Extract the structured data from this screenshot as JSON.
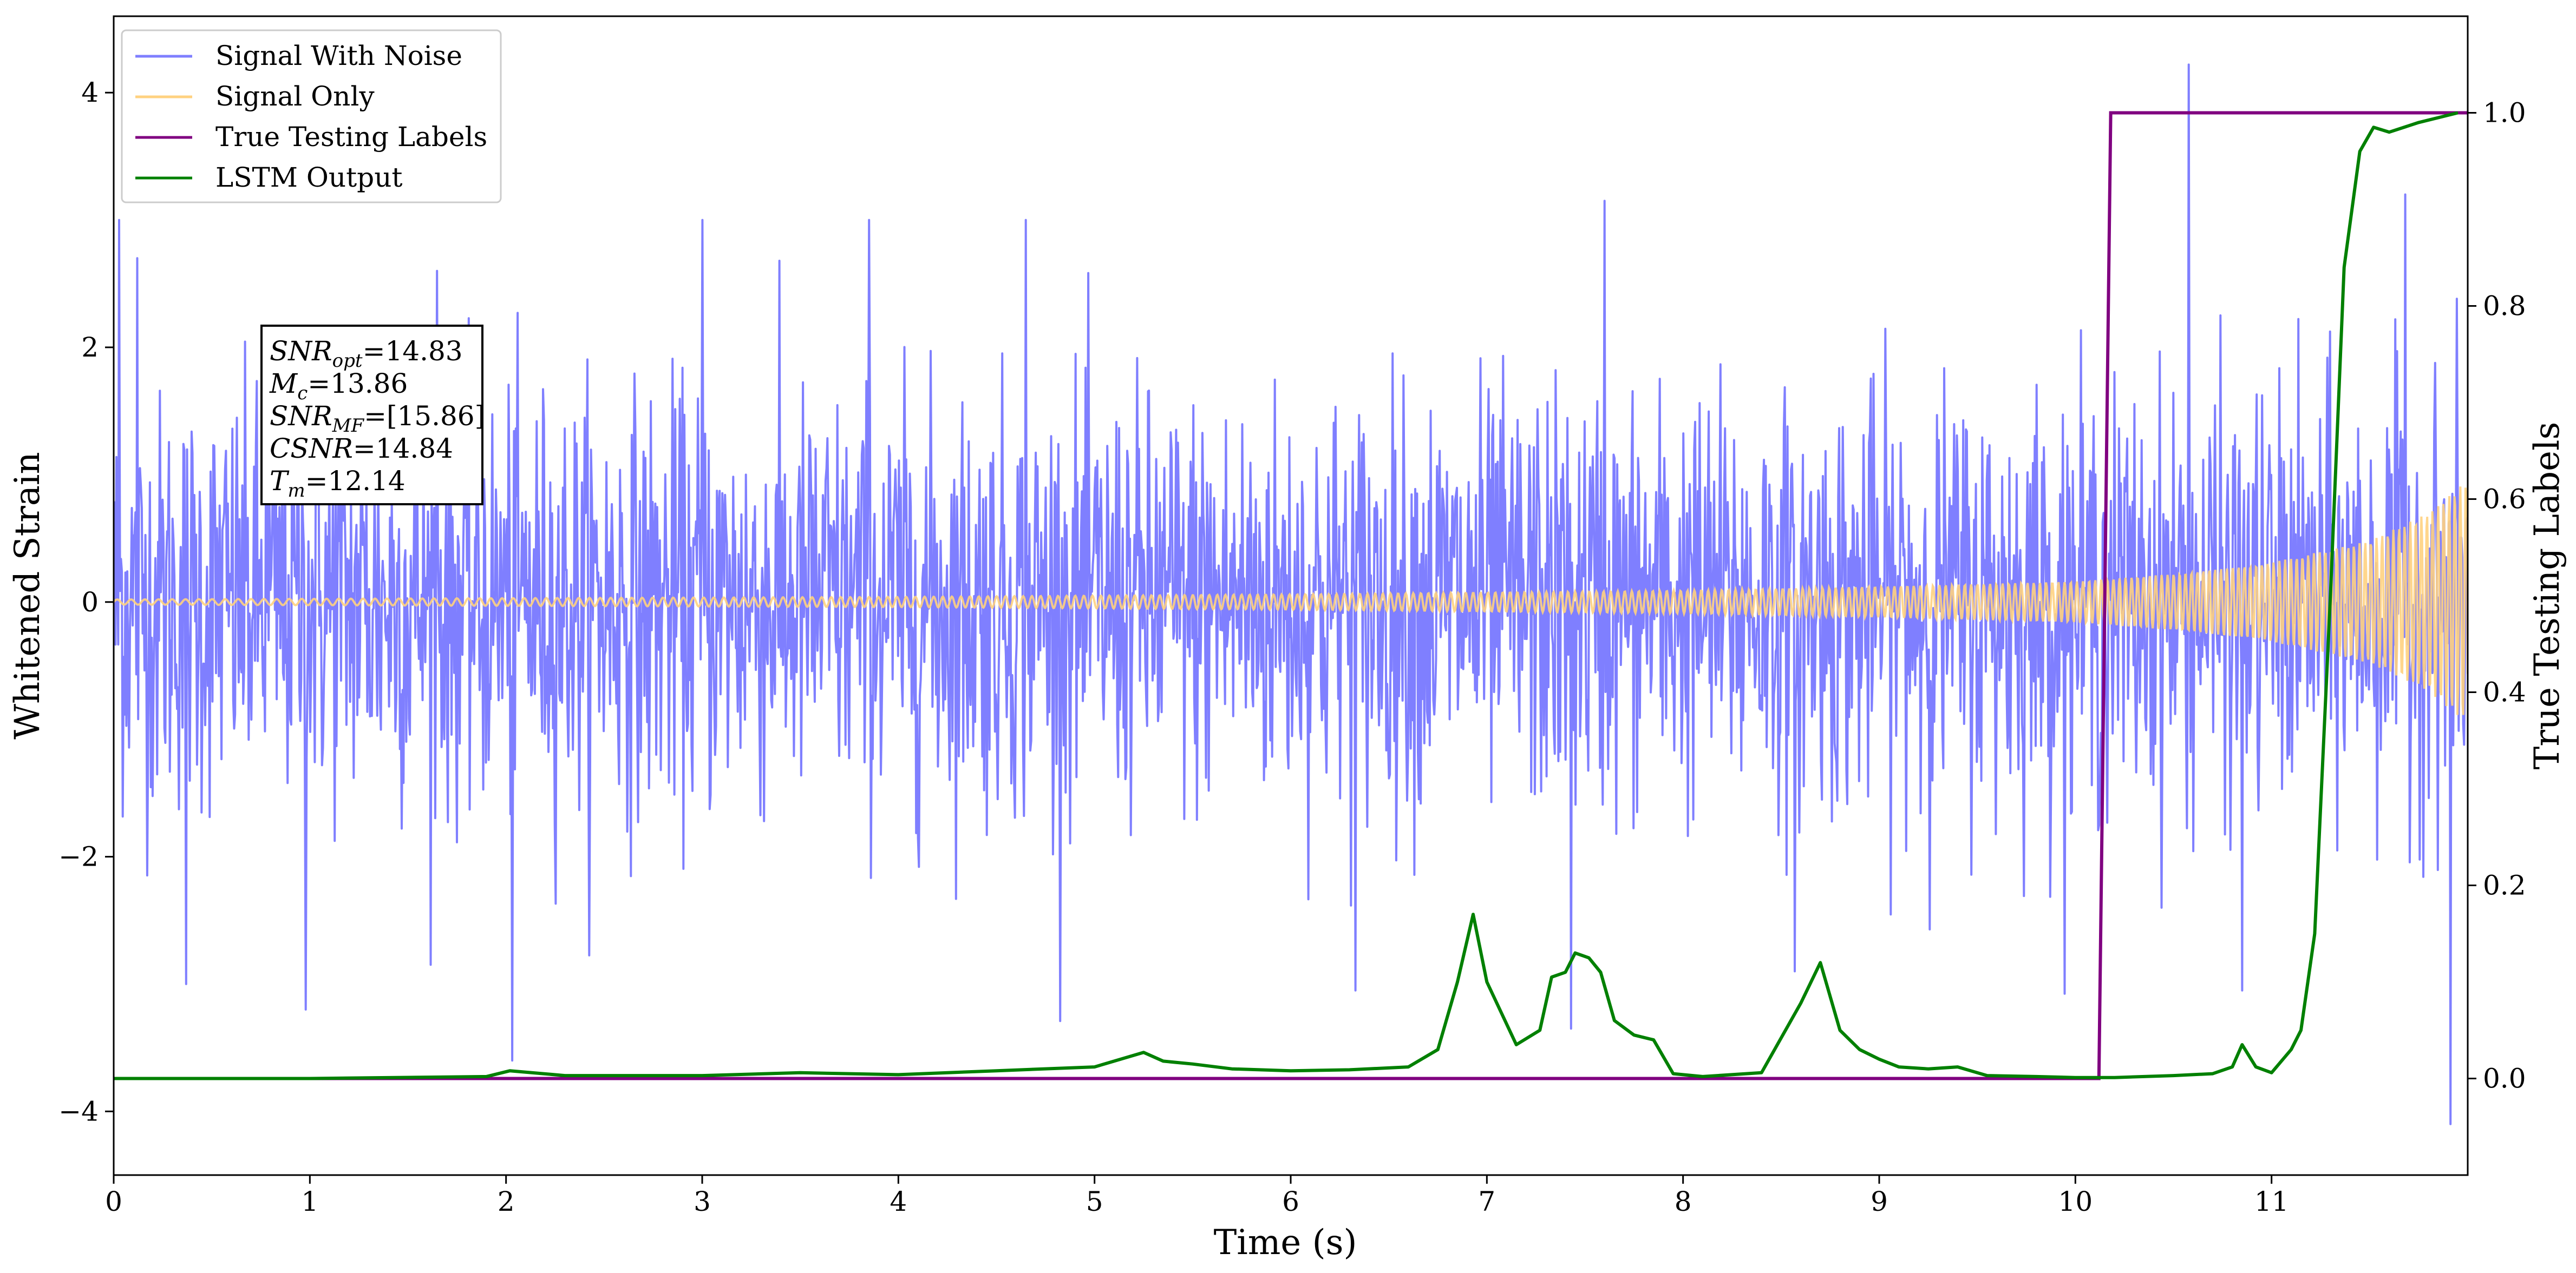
{
  "chart_data": {
    "type": "line",
    "xlabel": "Time (s)",
    "ylabel_left": "Whitened Strain",
    "ylabel_right": "True Testing Labels",
    "xlim": [
      0,
      12.0
    ],
    "ylim_left": [
      -4.5,
      4.6
    ],
    "ylim_right": [
      -0.1,
      1.1
    ],
    "x_ticks": [
      "0",
      "1",
      "2",
      "3",
      "4",
      "5",
      "6",
      "7",
      "8",
      "9",
      "10",
      "11"
    ],
    "y_ticks_left": [
      "−4",
      "−2",
      "0",
      "2",
      "4"
    ],
    "y_ticks_right": [
      "0.0",
      "0.2",
      "0.4",
      "0.6",
      "0.8",
      "1.0"
    ],
    "grid": false,
    "legend_position": "top-left",
    "legend": [
      {
        "label": "Signal With Noise",
        "color": "#7f7fff"
      },
      {
        "label": "Signal Only",
        "color": "#ffd280"
      },
      {
        "label": "True Testing Labels",
        "color": "#800080"
      },
      {
        "label": "LSTM Output",
        "color": "#008000"
      }
    ],
    "annotation": [
      {
        "var": "SNR",
        "sub": "opt",
        "value": "=14.83"
      },
      {
        "var": "M",
        "sub": "c",
        "value": "=13.86"
      },
      {
        "var": "SNR",
        "sub": "MF",
        "value": "=[15.86]"
      },
      {
        "var": "CSNR",
        "sub": "",
        "value": "=14.84"
      },
      {
        "var": "T",
        "sub": "m",
        "value": "=12.14"
      }
    ],
    "series": [
      {
        "name": "Signal With Noise",
        "axis": "left",
        "color": "#7f7fff",
        "envelope_x": [
          0,
          1,
          2,
          3,
          4,
          5,
          6,
          7,
          8,
          9,
          10,
          11,
          12.0
        ],
        "envelope_typical": [
          1.8,
          1.8,
          1.8,
          1.8,
          1.8,
          1.8,
          1.8,
          1.8,
          1.8,
          1.8,
          1.8,
          1.8,
          1.8
        ],
        "spikes": [
          {
            "x": 0.03,
            "y": 3.0
          },
          {
            "x": 0.12,
            "y": 2.7
          },
          {
            "x": 0.37,
            "y": -3.0
          },
          {
            "x": 0.98,
            "y": -3.2
          },
          {
            "x": 1.65,
            "y": 2.6
          },
          {
            "x": 2.03,
            "y": -3.6
          },
          {
            "x": 3.0,
            "y": 3.0
          },
          {
            "x": 3.85,
            "y": 3.0
          },
          {
            "x": 4.65,
            "y": 3.0
          },
          {
            "x": 6.33,
            "y": -3.05
          },
          {
            "x": 7.43,
            "y": -3.35
          },
          {
            "x": 7.6,
            "y": 3.15
          },
          {
            "x": 8.57,
            "y": -2.9
          },
          {
            "x": 10.58,
            "y": 4.22
          },
          {
            "x": 10.85,
            "y": -3.05
          },
          {
            "x": 11.68,
            "y": 3.2
          },
          {
            "x": 11.91,
            "y": -4.1
          }
        ]
      },
      {
        "name": "Signal Only",
        "axis": "left",
        "color": "#ffd280",
        "envelope_x": [
          0,
          2,
          4,
          6,
          8,
          9,
          10,
          10.5,
          11,
          11.5,
          11.8,
          12.0
        ],
        "envelope_amp": [
          0.02,
          0.03,
          0.04,
          0.06,
          0.09,
          0.12,
          0.16,
          0.22,
          0.31,
          0.48,
          0.7,
          0.96
        ]
      },
      {
        "name": "True Testing Labels",
        "axis": "right",
        "color": "#800080",
        "x": [
          0,
          10.12,
          10.18,
          12.0
        ],
        "y": [
          0.0,
          0.0,
          1.0,
          1.0
        ]
      },
      {
        "name": "LSTM Output",
        "axis": "right",
        "color": "#008000",
        "x": [
          0,
          1,
          1.9,
          2.02,
          2.3,
          3.0,
          3.5,
          4.0,
          4.5,
          5.0,
          5.25,
          5.35,
          5.5,
          5.7,
          6.0,
          6.3,
          6.6,
          6.75,
          6.85,
          6.93,
          7.0,
          7.15,
          7.27,
          7.33,
          7.4,
          7.45,
          7.52,
          7.58,
          7.65,
          7.75,
          7.85,
          7.95,
          8.1,
          8.4,
          8.6,
          8.7,
          8.8,
          8.9,
          9.0,
          9.1,
          9.25,
          9.4,
          9.55,
          9.8,
          10.0,
          10.2,
          10.5,
          10.7,
          10.8,
          10.85,
          10.92,
          11.0,
          11.1,
          11.15,
          11.22,
          11.3,
          11.37,
          11.45,
          11.52,
          11.6,
          11.75,
          11.95
        ],
        "y": [
          0.0,
          0.0,
          0.002,
          0.008,
          0.003,
          0.003,
          0.006,
          0.004,
          0.008,
          0.012,
          0.027,
          0.018,
          0.015,
          0.01,
          0.008,
          0.009,
          0.012,
          0.03,
          0.1,
          0.17,
          0.1,
          0.035,
          0.05,
          0.105,
          0.11,
          0.13,
          0.125,
          0.11,
          0.06,
          0.045,
          0.04,
          0.005,
          0.002,
          0.006,
          0.078,
          0.12,
          0.05,
          0.03,
          0.02,
          0.012,
          0.01,
          0.012,
          0.003,
          0.002,
          0.001,
          0.001,
          0.003,
          0.005,
          0.012,
          0.035,
          0.012,
          0.006,
          0.03,
          0.05,
          0.15,
          0.5,
          0.84,
          0.96,
          0.985,
          0.98,
          0.99,
          1.0
        ]
      }
    ]
  }
}
